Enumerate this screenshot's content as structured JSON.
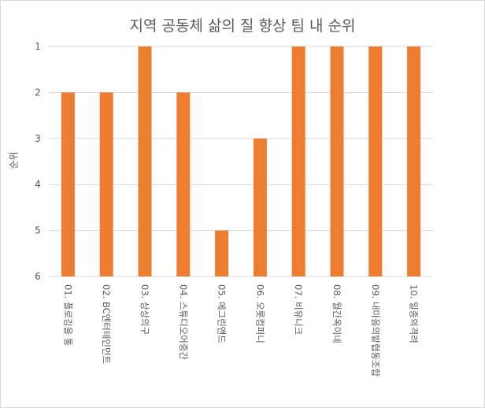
{
  "chart_data": {
    "type": "bar",
    "title": "지역 공동체 삶의 질 향상 팀 내 순위",
    "xlabel": "",
    "ylabel": "순위",
    "categories": [
      "01. 플로깅을 통",
      "02. BC엔터테인먼트",
      "03. 상상의구",
      "04. 스튜디오어중간",
      "05. 에그린앤드",
      "06. 오롯컴퍼니",
      "07. 비유니크",
      "08. 월간옥이네",
      "09. 내마음의밭협동조합",
      "10. 일종의격려"
    ],
    "values": [
      2,
      2,
      1,
      2,
      5,
      3,
      1,
      1,
      1,
      1
    ],
    "ylim": [
      1,
      6
    ],
    "y_reversed": true,
    "yticks": [
      1,
      2,
      3,
      4,
      5,
      6
    ],
    "grid": true,
    "bar_color": "#ED7D31"
  }
}
